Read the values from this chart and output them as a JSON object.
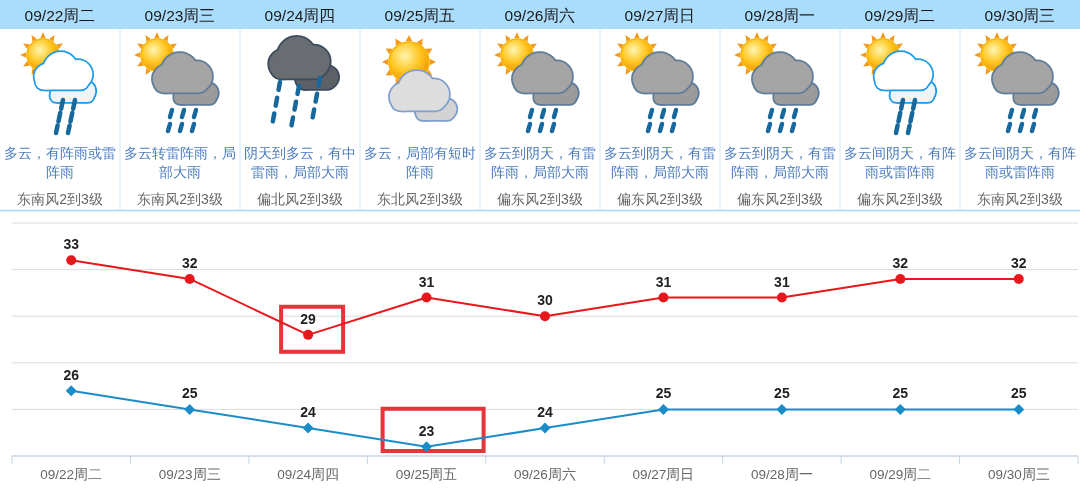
{
  "chart_data": [
    {
      "type": "other",
      "categories": [
        "09/22周二",
        "09/23周三",
        "09/24周四",
        "09/25周五",
        "09/26周六",
        "09/27周日",
        "09/28周一",
        "09/29周二",
        "09/30周三"
      ],
      "annotations": [
        "多云，有阵雨或雷阵雨",
        "多云转雷阵雨，局部大雨",
        "阴天到多云，有中雷雨，局部大雨",
        "多云，局部有短时阵雨",
        "多云到阴天，有雷阵雨，局部大雨",
        "多云到阴天，有雷阵雨，局部大雨",
        "多云到阴天，有雷阵雨，局部大雨",
        "多云间阴天，有阵雨或雷阵雨",
        "多云间阴天，有阵雨或雷阵雨",
        "东南风2到3级",
        "东南风2到3级",
        "偏北风2到3级",
        "东北风2到3级",
        "偏东风2到3级",
        "偏东风2到3级",
        "偏东风2到3级",
        "偏东风2到3级",
        "东南风2到3级"
      ]
    },
    {
      "type": "line",
      "categories": [
        "09/22周二",
        "09/23周三",
        "09/24周四",
        "09/25周五",
        "09/26周六",
        "09/27周日",
        "09/28周一",
        "09/29周二",
        "09/30周三"
      ],
      "series": [
        {
          "color": "#e8171b",
          "marker": "circle",
          "values": [
            33,
            32,
            29,
            31,
            30,
            31,
            31,
            32,
            32
          ]
        },
        {
          "color": "#1a8cc8",
          "marker": "diamond",
          "values": [
            26,
            25,
            24,
            23,
            24,
            25,
            25,
            25,
            25
          ]
        }
      ],
      "ylim": [
        22.5,
        35
      ],
      "yticks": [
        {
          "value": 25,
          "label": null
        },
        {
          "value": 27.5,
          "label": null
        },
        {
          "value": 30,
          "label": null
        },
        {
          "value": 32.5,
          "label": null
        },
        {
          "value": 35,
          "label": null
        }
      ],
      "grid": "y",
      "tick_labels": "x",
      "data_labels": true
    }
  ]
}
